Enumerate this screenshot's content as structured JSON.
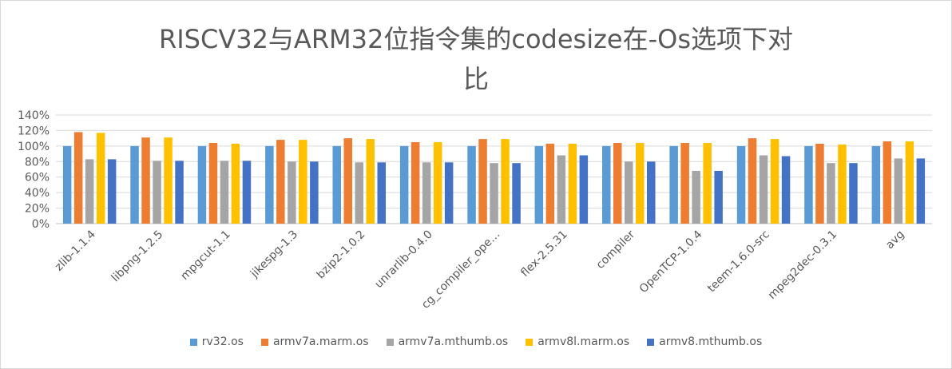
{
  "chart_data": {
    "type": "bar",
    "title_line1": "RISCV32与ARM32位指令集的codesize在-Os选项下对",
    "title_line2": "比",
    "categories": [
      "zlib-1.1.4",
      "libpng-1.2.5",
      "mpgcut-1.1",
      "jikespg-1.3",
      "bzip2-1.0.2",
      "unrarlib-0.4.0",
      "cg_compiler_ope…",
      "flex-2.5.31",
      "compiler",
      "OpenTCP-1.0.4",
      "teem-1.6.0-src",
      "mpeg2dec-0.3.1",
      "avg"
    ],
    "y_ticks": [
      "0%",
      "20%",
      "40%",
      "60%",
      "80%",
      "100%",
      "120%",
      "140%"
    ],
    "ylim": [
      0,
      140
    ],
    "grid": true,
    "legend_position": "bottom",
    "series": [
      {
        "name": "rv32.os",
        "color": "#5B9BD5",
        "values": [
          100,
          100,
          100,
          100,
          100,
          100,
          100,
          100,
          100,
          100,
          100,
          100,
          100
        ]
      },
      {
        "name": "armv7a.marm.os",
        "color": "#ED7D31",
        "values": [
          118,
          111,
          104,
          108,
          110,
          105,
          109,
          103,
          104,
          104,
          110,
          103,
          106
        ]
      },
      {
        "name": "armv7a.mthumb.os",
        "color": "#A5A5A5",
        "values": [
          83,
          81,
          81,
          80,
          79,
          79,
          78,
          88,
          80,
          68,
          88,
          78,
          84
        ]
      },
      {
        "name": "armv8l.marm.os",
        "color": "#FFC000",
        "values": [
          117,
          111,
          103,
          108,
          109,
          105,
          109,
          103,
          104,
          104,
          109,
          102,
          106
        ]
      },
      {
        "name": "armv8.mthumb.os",
        "color": "#4472C4",
        "values": [
          83,
          81,
          81,
          80,
          79,
          79,
          78,
          88,
          80,
          68,
          87,
          78,
          84
        ]
      }
    ]
  }
}
